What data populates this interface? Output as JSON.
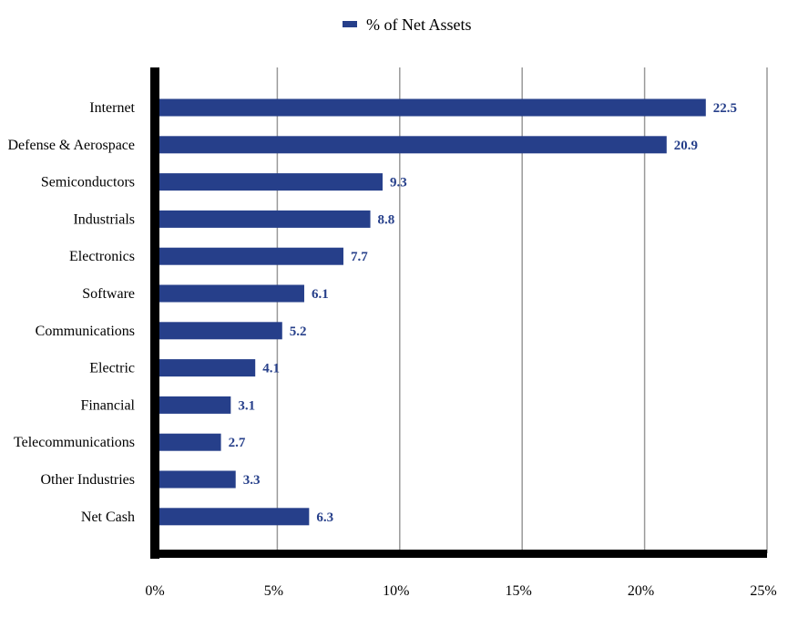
{
  "chart_data": {
    "type": "bar",
    "orientation": "horizontal",
    "categories": [
      "Internet",
      "Defense & Aerospace",
      "Semiconductors",
      "Industrials",
      "Electronics",
      "Software",
      "Communications",
      "Electric",
      "Financial",
      "Telecommunications",
      "Other Industries",
      "Net Cash"
    ],
    "series": [
      {
        "name": "% of Net Assets",
        "values": [
          22.5,
          20.9,
          9.3,
          8.8,
          7.7,
          6.1,
          5.2,
          4.1,
          3.1,
          2.7,
          3.3,
          6.3
        ],
        "data_labels": [
          "22.5",
          "20.9",
          "9.3",
          "8.8",
          "7.7",
          "6.1",
          "5.2",
          "4.1",
          "3.1",
          "2.7",
          "3.3",
          "6.3"
        ]
      }
    ],
    "xlim": [
      0,
      25
    ],
    "x_ticks": [
      0,
      5,
      10,
      15,
      20,
      25
    ],
    "x_tick_labels": [
      "0%",
      "5%",
      "10%",
      "15%",
      "20%",
      "25%"
    ],
    "title": "",
    "xlabel": "",
    "ylabel": "",
    "grid": true,
    "legend": {
      "position": "top-center",
      "entries": [
        "% of Net Assets"
      ]
    },
    "colors": {
      "bar": "#263f8a",
      "label": "#263f8a",
      "axis": "#000000",
      "grid": "#999999",
      "text": "#000000"
    }
  }
}
